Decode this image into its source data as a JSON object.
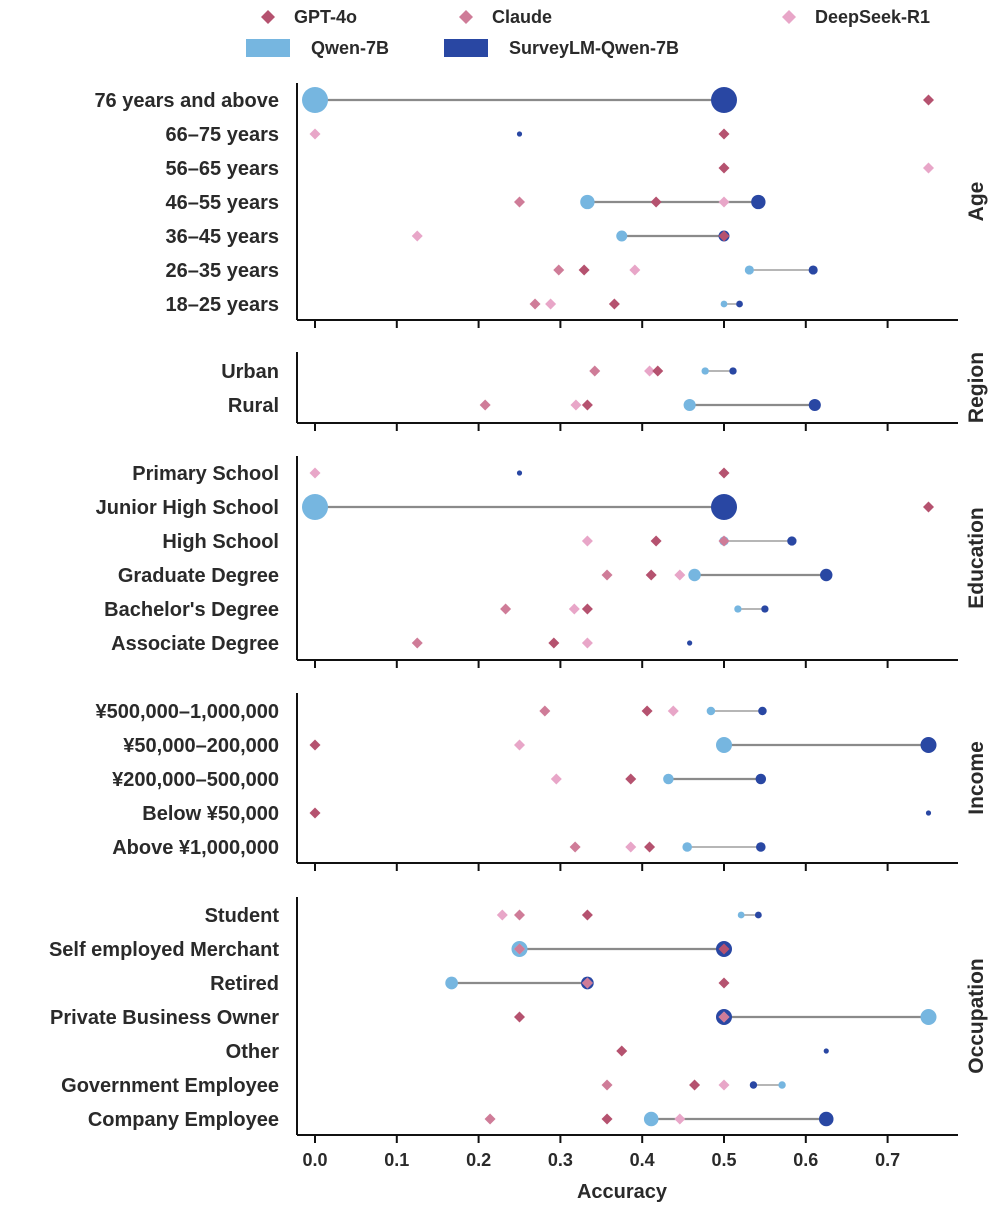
{
  "chart_data": {
    "type": "dot",
    "xlabel": "Accuracy",
    "xlim": [
      -0.045,
      0.765
    ],
    "xticks": [
      0.0,
      0.1,
      0.2,
      0.3,
      0.4,
      0.5,
      0.6,
      0.7
    ],
    "xtick_labels": [
      "0.0",
      "0.1",
      "0.2",
      "0.3",
      "0.4",
      "0.5",
      "0.6",
      "0.7"
    ],
    "colors": {
      "GPT-4o": "#b5526f",
      "Claude": "#cf7c98",
      "DeepSeek-R1": "#e8a6c8",
      "Qwen-7B": "#76b6e0",
      "SurveyLM-Qwen-7B": "#2947a3",
      "connector": "#8a8a8a"
    },
    "legend": [
      {
        "name": "GPT-4o",
        "marker": "diamond"
      },
      {
        "name": "Claude",
        "marker": "diamond"
      },
      {
        "name": "DeepSeek-R1",
        "marker": "diamond"
      },
      {
        "name": "Qwen-7B",
        "marker": "circle"
      },
      {
        "name": "SurveyLM-Qwen-7B",
        "marker": "circle"
      }
    ],
    "groups": [
      {
        "title": "Age",
        "categories": [
          {
            "label": "76 years and above",
            "gpt4o": 0.75,
            "claude": null,
            "deepseek": null,
            "qwen": 0.0,
            "surveylm": 0.5
          },
          {
            "label": "66–75 years",
            "gpt4o": 0.5,
            "claude": null,
            "deepseek": 0.0,
            "qwen": null,
            "surveylm": 0.25
          },
          {
            "label": "56–65 years",
            "gpt4o": 0.5,
            "claude": null,
            "deepseek": 0.75,
            "qwen": null,
            "surveylm": null
          },
          {
            "label": "46–55 years",
            "gpt4o": 0.417,
            "claude": 0.25,
            "deepseek": 0.5,
            "qwen": 0.333,
            "surveylm": 0.542
          },
          {
            "label": "36–45 years",
            "gpt4o": 0.5,
            "claude": null,
            "deepseek": 0.125,
            "qwen": 0.375,
            "surveylm": 0.5
          },
          {
            "label": "26–35 years",
            "gpt4o": 0.329,
            "claude": 0.298,
            "deepseek": 0.391,
            "qwen": 0.531,
            "surveylm": 0.609
          },
          {
            "label": "18–25 years",
            "gpt4o": 0.366,
            "claude": 0.269,
            "deepseek": 0.288,
            "qwen": 0.5,
            "surveylm": 0.519
          }
        ]
      },
      {
        "title": "Region",
        "categories": [
          {
            "label": "Urban",
            "gpt4o": 0.419,
            "claude": 0.342,
            "deepseek": 0.409,
            "qwen": 0.477,
            "surveylm": 0.511
          },
          {
            "label": "Rural",
            "gpt4o": 0.333,
            "claude": 0.208,
            "deepseek": 0.319,
            "qwen": 0.458,
            "surveylm": 0.611
          }
        ]
      },
      {
        "title": "Education",
        "categories": [
          {
            "label": "Primary School",
            "gpt4o": 0.5,
            "claude": null,
            "deepseek": 0.0,
            "qwen": null,
            "surveylm": 0.25
          },
          {
            "label": "Junior High School",
            "gpt4o": 0.75,
            "claude": null,
            "deepseek": null,
            "qwen": 0.0,
            "surveylm": 0.5
          },
          {
            "label": "High School",
            "gpt4o": 0.417,
            "claude": 0.5,
            "deepseek": 0.333,
            "qwen": 0.5,
            "surveylm": 0.583
          },
          {
            "label": "Graduate Degree",
            "gpt4o": 0.411,
            "claude": 0.357,
            "deepseek": 0.446,
            "qwen": 0.464,
            "surveylm": 0.625
          },
          {
            "label": "Bachelor's Degree",
            "gpt4o": 0.333,
            "claude": 0.233,
            "deepseek": 0.317,
            "qwen": 0.517,
            "surveylm": 0.55
          },
          {
            "label": "Associate Degree",
            "gpt4o": 0.292,
            "claude": 0.125,
            "deepseek": 0.333,
            "qwen": null,
            "surveylm": 0.458
          }
        ]
      },
      {
        "title": "Income",
        "categories": [
          {
            "label": "¥500,000–1,000,000",
            "gpt4o": 0.406,
            "claude": 0.281,
            "deepseek": 0.438,
            "qwen": 0.484,
            "surveylm": 0.547
          },
          {
            "label": "¥50,000–200,000",
            "gpt4o": 0.0,
            "claude": null,
            "deepseek": 0.25,
            "qwen": 0.5,
            "surveylm": 0.75
          },
          {
            "label": "¥200,000–500,000",
            "gpt4o": 0.386,
            "claude": null,
            "deepseek": 0.295,
            "qwen": 0.432,
            "surveylm": 0.545
          },
          {
            "label": "Below ¥50,000",
            "gpt4o": 0.0,
            "claude": null,
            "deepseek": null,
            "qwen": null,
            "surveylm": 0.75
          },
          {
            "label": "Above ¥1,000,000",
            "gpt4o": 0.409,
            "claude": 0.318,
            "deepseek": 0.386,
            "qwen": 0.455,
            "surveylm": 0.545
          }
        ]
      },
      {
        "title": "Occupation",
        "categories": [
          {
            "label": "Student",
            "gpt4o": 0.333,
            "claude": 0.25,
            "deepseek": 0.229,
            "qwen": 0.521,
            "surveylm": 0.542
          },
          {
            "label": "Self employed Merchant",
            "gpt4o": 0.5,
            "claude": 0.25,
            "deepseek": 0.25,
            "qwen": 0.25,
            "surveylm": 0.5
          },
          {
            "label": "Retired",
            "gpt4o": 0.5,
            "claude": 0.333,
            "deepseek": 0.333,
            "qwen": 0.167,
            "surveylm": 0.333
          },
          {
            "label": "Private Business Owner",
            "gpt4o": 0.25,
            "claude": 0.5,
            "deepseek": 0.5,
            "qwen": 0.75,
            "surveylm": 0.5
          },
          {
            "label": "Other",
            "gpt4o": 0.375,
            "claude": null,
            "deepseek": null,
            "qwen": null,
            "surveylm": 0.625
          },
          {
            "label": "Government Employee",
            "gpt4o": 0.464,
            "claude": 0.357,
            "deepseek": 0.5,
            "qwen": 0.571,
            "surveylm": 0.536
          },
          {
            "label": "Company Employee",
            "gpt4o": 0.357,
            "claude": 0.214,
            "deepseek": 0.446,
            "qwen": 0.411,
            "surveylm": 0.625
          }
        ]
      }
    ]
  }
}
